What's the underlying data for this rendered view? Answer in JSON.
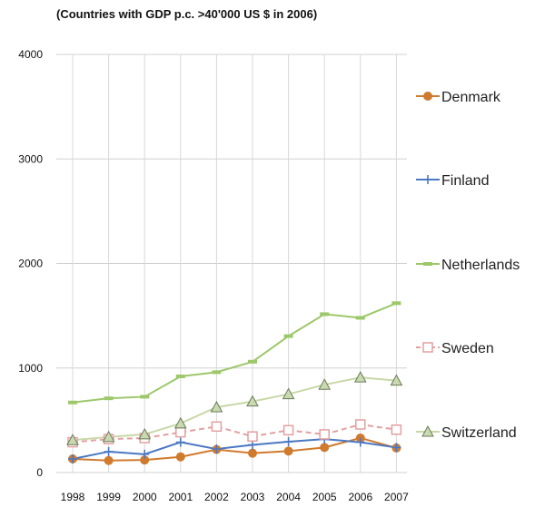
{
  "chart_data": {
    "type": "line",
    "subtitle": "(Countries with GDP p.c. >40'000 US $ in 2006)",
    "x": [
      "1998",
      "1999",
      "2000",
      "2001",
      "2002",
      "2003",
      "2004",
      "2005",
      "2006",
      "2007"
    ],
    "ylim": [
      0,
      4000
    ],
    "yticks": [
      "0",
      "1000",
      "2000",
      "3000",
      "4000"
    ],
    "grid": true,
    "legend_position": "right",
    "series": [
      {
        "name": "Denmark",
        "color": "#d07a2e",
        "marker": "circle",
        "dashed": false,
        "values": [
          130,
          115,
          120,
          150,
          220,
          185,
          205,
          240,
          330,
          235
        ]
      },
      {
        "name": "Finland",
        "color": "#4a78c2",
        "marker": "plus",
        "dashed": false,
        "values": [
          130,
          200,
          175,
          290,
          225,
          265,
          295,
          320,
          290,
          240
        ]
      },
      {
        "name": "Netherlands",
        "color": "#9dc86a",
        "marker": "dash",
        "dashed": false,
        "values": [
          670,
          710,
          725,
          920,
          960,
          1060,
          1305,
          1515,
          1480,
          1620
        ]
      },
      {
        "name": "Sweden",
        "color": "#e3a0a0",
        "marker": "square",
        "dashed": true,
        "values": [
          290,
          320,
          330,
          385,
          440,
          345,
          405,
          365,
          460,
          410
        ]
      },
      {
        "name": "Switzerland",
        "color": "#c7d8a8",
        "marker": "triangle",
        "dashed": false,
        "values": [
          310,
          340,
          365,
          470,
          625,
          680,
          750,
          840,
          910,
          880
        ]
      }
    ]
  }
}
